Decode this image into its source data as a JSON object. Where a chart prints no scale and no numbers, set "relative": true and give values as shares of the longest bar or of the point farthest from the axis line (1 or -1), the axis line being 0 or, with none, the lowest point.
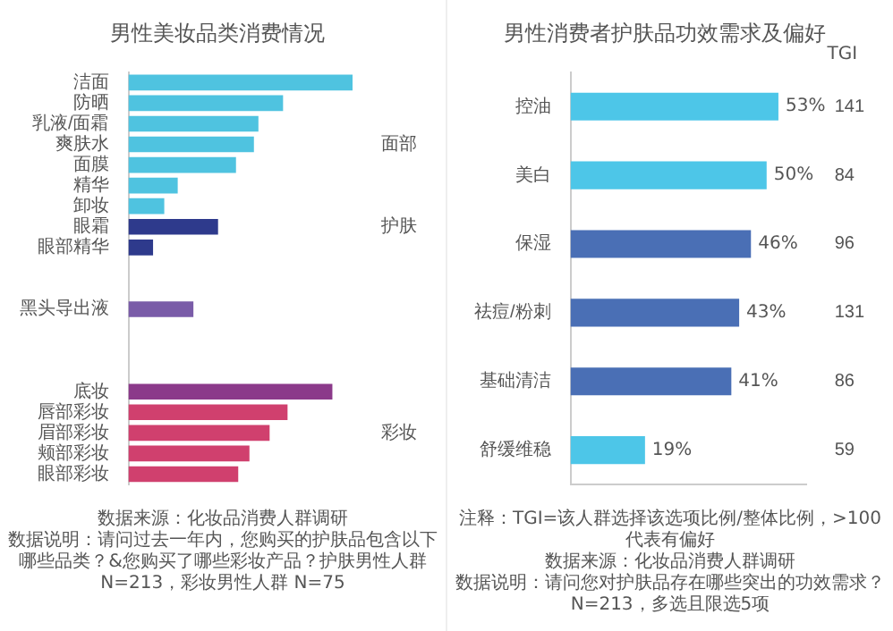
{
  "chart_data": [
    {
      "type": "bar",
      "title": "男性美妆品类消费情况",
      "orientation": "horizontal",
      "relative": true,
      "tick_labels": "y",
      "categories": [
        "洁面",
        "防晒",
        "乳液/面霜",
        "爽肤水",
        "面膜",
        "精华",
        "卸妆",
        "眼霜",
        "眼部精华",
        null,
        null,
        "黑头导出液",
        null,
        null,
        null,
        "底妆",
        "唇部彩妆",
        "眉部彩妆",
        "颊部彩妆",
        "眼部彩妆"
      ],
      "y2_categories": [
        null,
        null,
        null,
        "面部",
        null,
        null,
        null,
        "护肤",
        null,
        null,
        null,
        null,
        null,
        null,
        null,
        null,
        null,
        "彩妆",
        null,
        null
      ],
      "values": [
        1,
        0.69,
        0.58,
        0.56,
        0.48,
        0.22,
        0.16,
        0.4,
        0.11,
        null,
        null,
        0.29,
        null,
        null,
        null,
        0.91,
        0.71,
        0.63,
        0.54,
        0.49
      ],
      "colors": [
        "#4fc3e0",
        "#4fc3e0",
        "#4fc3e0",
        "#4fc3e0",
        "#4fc3e0",
        "#4fc3e0",
        "#4fc3e0",
        "#2e3a8c",
        "#2e3a8c",
        "#2e3a8c",
        "#2e3a8c",
        "#7a5ca8",
        "#7a5ca8",
        "#7a5ca8",
        "#7a5ca8",
        "#8b3a8a",
        "#d0406e",
        "#d0406e",
        "#d0406e",
        "#d0406e"
      ],
      "annotations": [
        "数据来源：化妆品消费人群调研",
        "数据说明：请问过去一年内，您购买的护肤品包含以下哪些品类？&您购买了哪些彩妆产品？护肤男性人群N=213，彩妆男性人群 N=75"
      ]
    },
    {
      "type": "bar",
      "title": "男性消费者护肤品功效需求及偏好",
      "orientation": "horizontal",
      "tick_labels": "y",
      "y2label": "TGI",
      "categories": [
        "控油",
        "美白",
        "保湿",
        "祛痘/粉刺",
        "基础清洁",
        "舒缓维稳"
      ],
      "y2_categories": [
        "141",
        "84",
        "96",
        "131",
        "86",
        "59"
      ],
      "values": [
        53,
        50,
        46,
        43,
        41,
        19
      ],
      "value_labels": [
        "53%",
        "50%",
        "46%",
        "43%",
        "41%",
        "19%"
      ],
      "colors": [
        "#4dc6e8",
        "#4dc6e8",
        "#4a6fb5",
        "#4a6fb5",
        "#4a6fb5",
        "#4dc6e8"
      ],
      "annotations": [
        "注释：TGI=该人群选择该选项比例/整体比例，>100代表有偏好",
        "数据来源：化妆品消费人群调研",
        "数据说明：请问您对护肤品存在哪些突出的功效需求？N=213，多选且限选5项"
      ]
    }
  ]
}
